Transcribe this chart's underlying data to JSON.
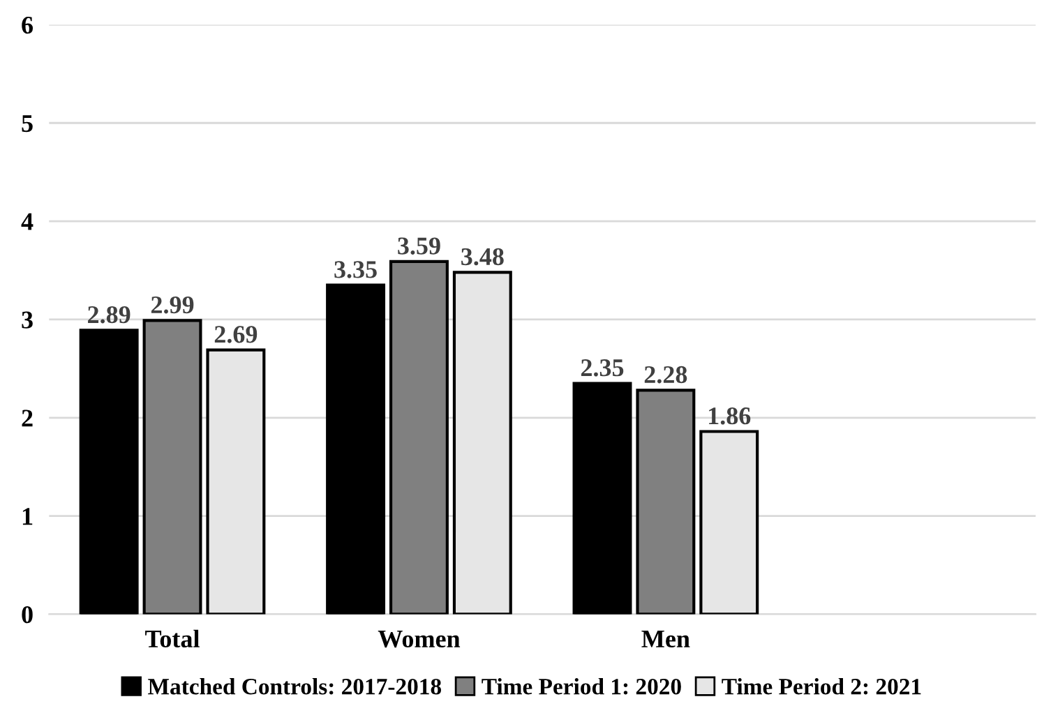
{
  "chart_data": {
    "type": "bar",
    "categories": [
      "Total",
      "Women",
      "Men",
      null
    ],
    "series": [
      {
        "name": "Matched Controls: 2017-2018",
        "color": "#000000",
        "values": [
          2.89,
          3.35,
          2.35,
          null
        ]
      },
      {
        "name": "Time Period 1: 2020",
        "color": "#808080",
        "values": [
          2.99,
          3.59,
          2.28,
          null
        ]
      },
      {
        "name": "Time Period 2: 2021",
        "color": "#e6e6e6",
        "values": [
          2.69,
          3.48,
          1.86,
          null
        ]
      }
    ],
    "ylim": [
      0,
      6
    ],
    "yticks": [
      0,
      1,
      2,
      3,
      4,
      5,
      6
    ],
    "grid": "y",
    "legend": "bottom",
    "data_labels": true
  }
}
